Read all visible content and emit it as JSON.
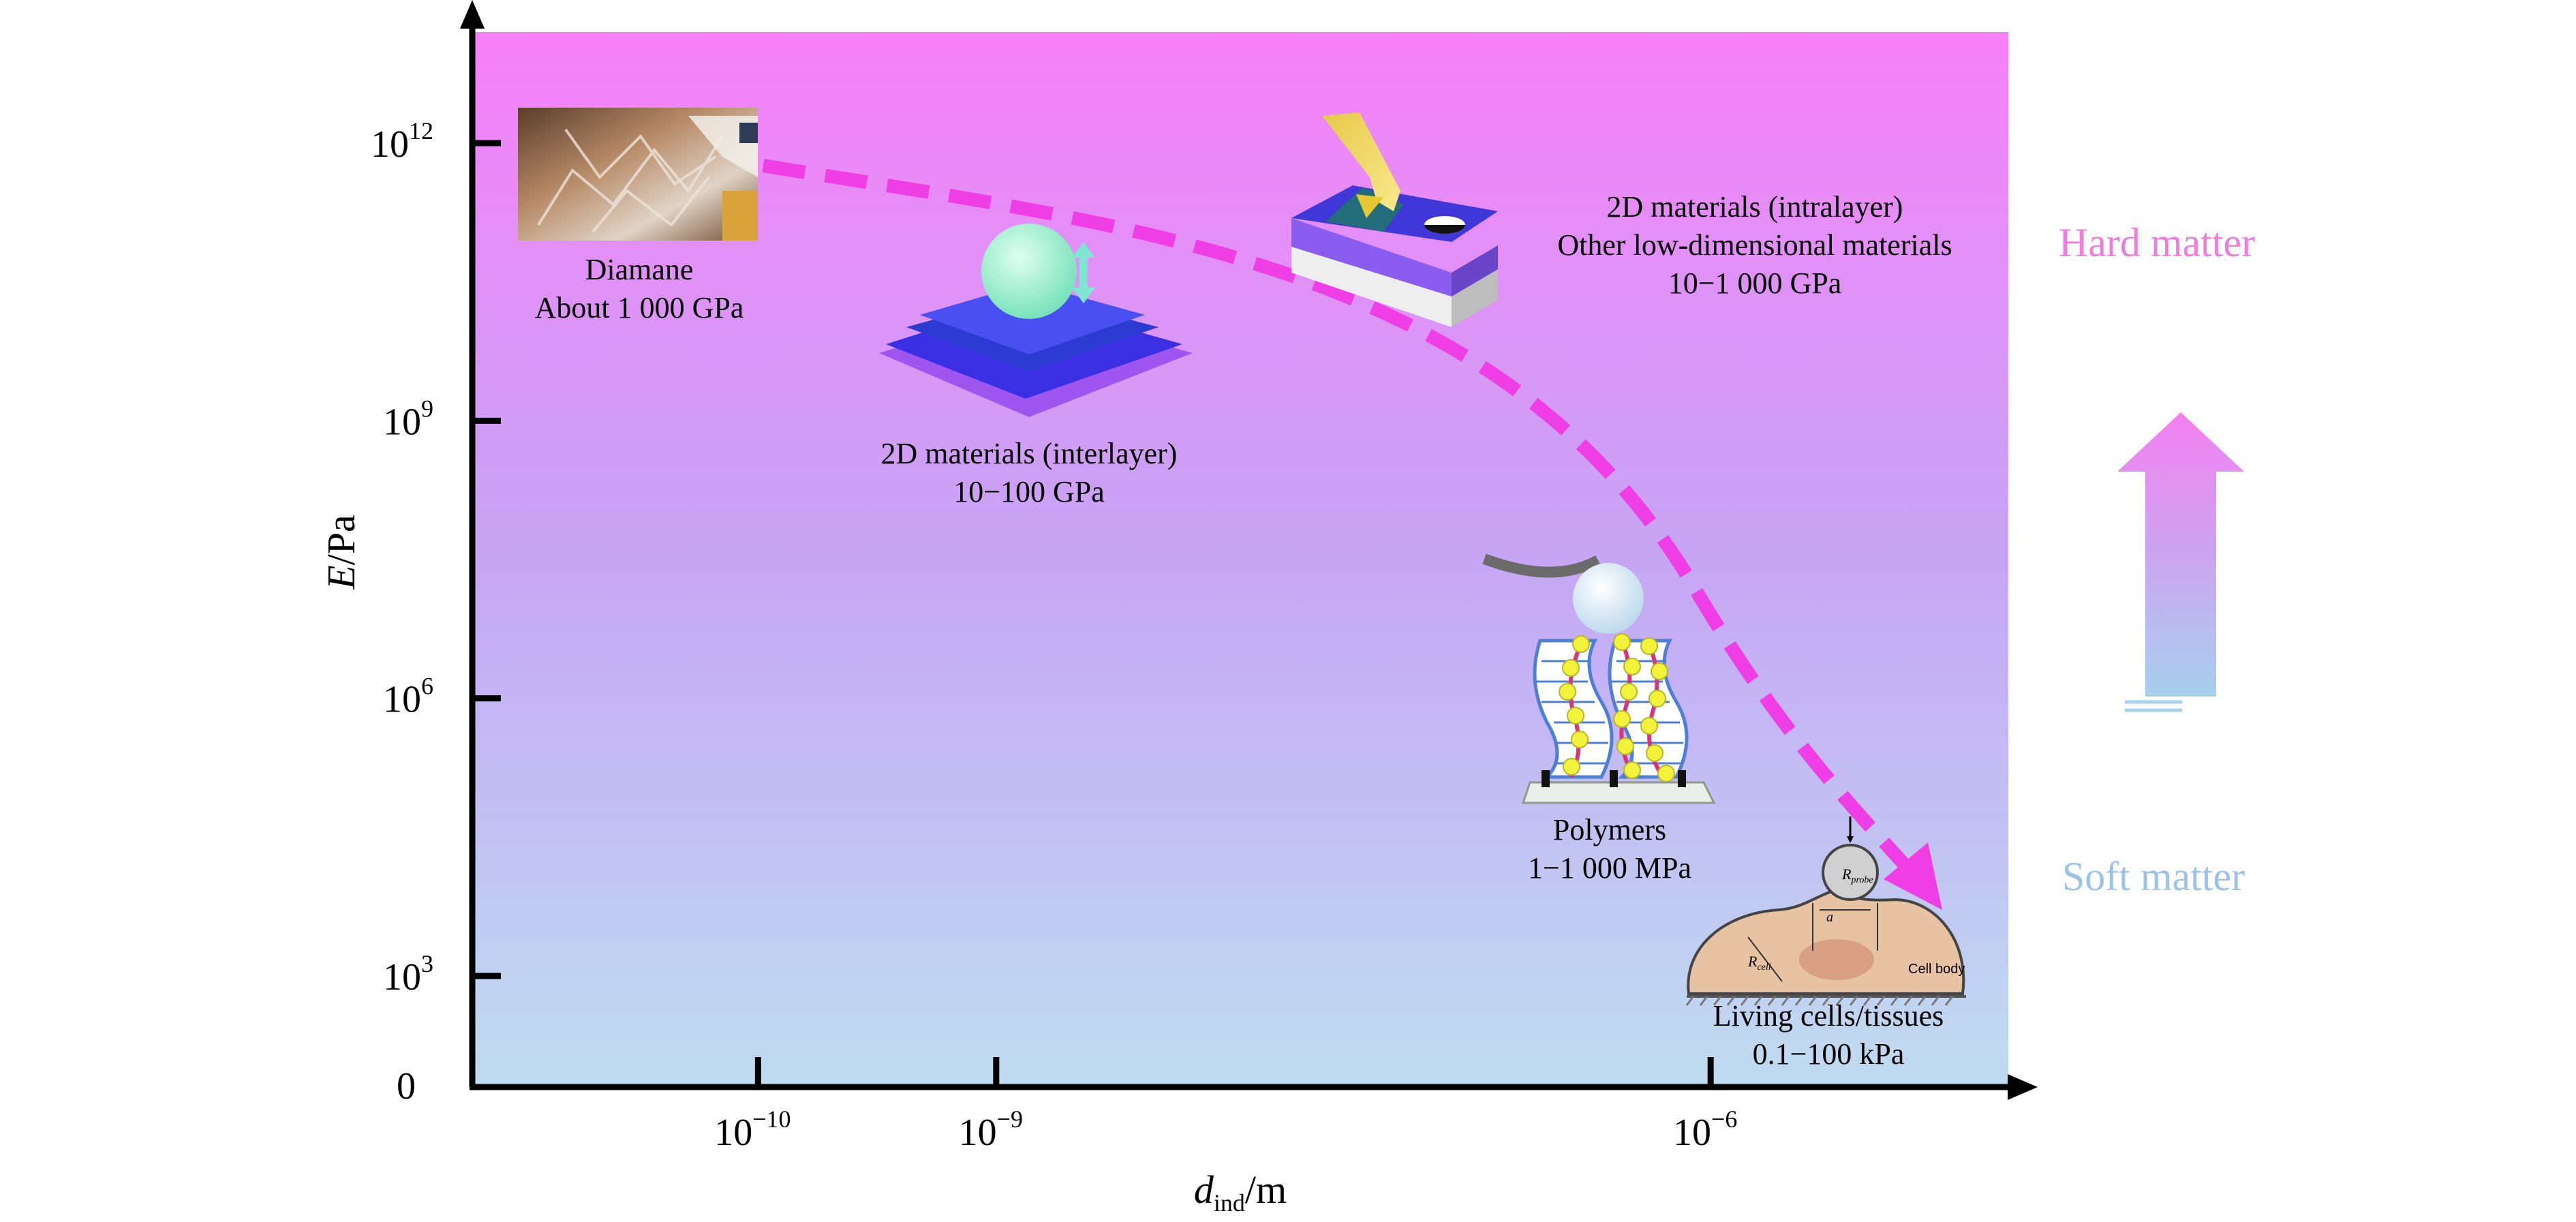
{
  "chart_data": {
    "type": "scatter",
    "xlabel": {
      "main": "d",
      "sub": "ind",
      "unit": "/m"
    },
    "ylabel": {
      "main": "E",
      "unit": "/Pa"
    },
    "x_ticks": [
      {
        "value": -10,
        "base": "10",
        "exp": "−10"
      },
      {
        "value": -9,
        "base": "10",
        "exp": "−9"
      },
      {
        "value": -6,
        "base": "10",
        "exp": "−6"
      }
    ],
    "y_ticks": [
      {
        "value": 12,
        "base": "10",
        "exp": "12"
      },
      {
        "value": 9,
        "base": "10",
        "exp": "9"
      },
      {
        "value": 6,
        "base": "10",
        "exp": "6"
      },
      {
        "value": 3,
        "base": "10",
        "exp": "3"
      }
    ],
    "origin_label": "0",
    "x_scale": "log",
    "y_scale": "log",
    "xlim_log10": [
      -11.2,
      -4.75
    ],
    "ylim_log10": [
      1.8,
      13.2
    ],
    "points": [
      {
        "name": "Diamane",
        "lines": [
          "Diamane",
          "About 1 000 GPa"
        ],
        "x_log10": -10.0,
        "y_log10": 12.0
      },
      {
        "name": "2D materials (interlayer)",
        "lines": [
          "2D materials (interlayer)",
          "10−100 GPa"
        ],
        "x_log10": -9.15,
        "y_log10": 10.5
      },
      {
        "name": "2D materials (intralayer)",
        "lines": [
          "2D materials (intralayer)",
          "Other low-dimensional materials",
          "10−1 000 GPa"
        ],
        "x_log10": -7.6,
        "y_log10": 11.2
      },
      {
        "name": "Polymers",
        "lines": [
          "Polymers",
          "1−1 000 MPa"
        ],
        "x_log10": -6.35,
        "y_log10": 6.0
      },
      {
        "name": "Living cells/tissues",
        "lines": [
          "Living cells/tissues",
          "0.1−100 kPa"
        ],
        "x_log10": -5.35,
        "y_log10": 4.1
      }
    ],
    "trend_arrow_color": "#f03ee6",
    "side_labels": {
      "hard": "Hard matter",
      "soft": "Soft matter"
    },
    "colors": {
      "bg_top": "#f77ff8",
      "bg_mid": "#c6a6f5",
      "bg_bottom": "#bfdcf0",
      "hard_text": "#ee7ddd",
      "soft_text": "#9cc2ea"
    },
    "inset_text": {
      "r_probe": "R",
      "r_probe_sub": "probe",
      "r_cell": "R",
      "r_cell_sub": "cell",
      "a": "a",
      "cell_body": "Cell body"
    }
  }
}
